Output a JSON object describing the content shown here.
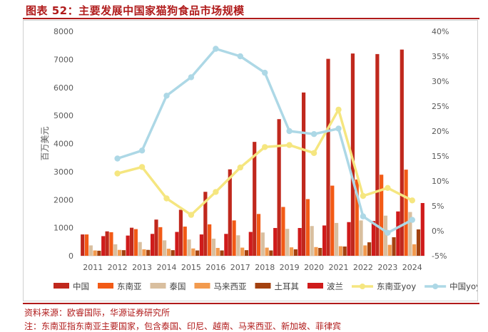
{
  "header": {
    "title": "图表 52：主要发展中国家猫狗食品市场规模"
  },
  "footer": {
    "source": "资料来源：欧睿国际，华源证券研究所",
    "note": "注：东南亚指东南亚主要国家，包含泰国、印尼、越南、马来西亚、新加坡、菲律宾"
  },
  "colors": {
    "中国": "#c0281d",
    "东南亚": "#f25a16",
    "泰国": "#d9bf9f",
    "马来西亚": "#f29a4e",
    "土耳其": "#a3410f",
    "波兰": "#cf1b1b",
    "东南亚yoy": "#f5e680",
    "中国yoy": "#add8e6"
  },
  "chart_data": {
    "type": "bar",
    "categories": [
      "2011",
      "2012",
      "2013",
      "2014",
      "2015",
      "2016",
      "2017",
      "2018",
      "2019",
      "2020",
      "2021",
      "2022",
      "2023",
      "2024"
    ],
    "ylabel": "百万美元",
    "ylim": [
      0,
      8000
    ],
    "y_ticks": [
      "0",
      "1000",
      "2000",
      "3000",
      "4000",
      "5000",
      "6000",
      "7000",
      "8000"
    ],
    "y2lim": [
      -5,
      40
    ],
    "y2_ticks": [
      "-5%",
      "0%",
      "5%",
      "10%",
      "15%",
      "20%",
      "25%",
      "30%",
      "35%",
      "40%"
    ],
    "series": [
      {
        "name": "中国",
        "type": "bar",
        "values": [
          760,
          870,
          1000,
          1290,
          1640,
          2280,
          3080,
          4060,
          4870,
          5820,
          7020,
          7210,
          7190,
          7350
        ]
      },
      {
        "name": "东南亚",
        "type": "bar",
        "values": [
          760,
          840,
          950,
          1020,
          1040,
          1120,
          1260,
          1490,
          1740,
          2020,
          2500,
          2720,
          2890,
          3070
        ]
      },
      {
        "name": "泰国",
        "type": "bar",
        "values": [
          370,
          410,
          490,
          550,
          580,
          610,
          730,
          830,
          960,
          1060,
          1170,
          1260,
          1430,
          1560
        ]
      },
      {
        "name": "马来西亚",
        "type": "bar",
        "values": [
          190,
          210,
          230,
          250,
          260,
          280,
          290,
          290,
          300,
          310,
          340,
          370,
          390,
          410
        ]
      },
      {
        "name": "土耳其",
        "type": "bar",
        "values": [
          180,
          200,
          210,
          200,
          190,
          190,
          200,
          190,
          230,
          280,
          330,
          480,
          660,
          940
        ]
      },
      {
        "name": "波兰",
        "type": "bar",
        "values": [
          700,
          720,
          780,
          850,
          760,
          780,
          850,
          990,
          990,
          1080,
          1200,
          1240,
          1580,
          1880
        ]
      },
      {
        "name": "东南亚yoy",
        "type": "line",
        "axis": "right",
        "values": [
          null,
          11.5,
          12.8,
          6.5,
          3.2,
          7.8,
          12.7,
          16.8,
          17.2,
          15.6,
          24.3,
          7.0,
          8.6,
          6.1
        ]
      },
      {
        "name": "中国yoy",
        "type": "line",
        "axis": "right",
        "values": [
          null,
          14.5,
          16.1,
          27.1,
          30.8,
          36.5,
          35.0,
          31.7,
          20.0,
          19.4,
          20.5,
          2.9,
          -0.4,
          2.2
        ]
      }
    ],
    "legend": "bottom",
    "grid": false
  }
}
